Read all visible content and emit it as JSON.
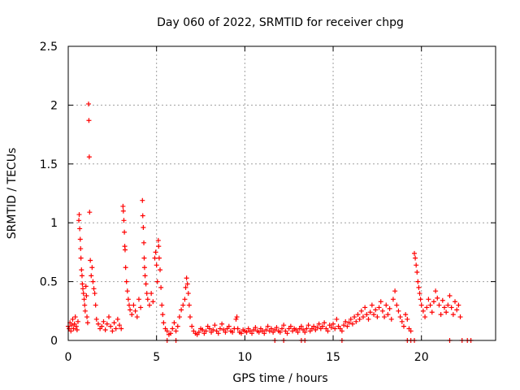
{
  "chart_data": {
    "type": "scatter",
    "title": "Day 060 of 2022, SRMTID for receiver chpg",
    "xlabel": "GPS time / hours",
    "ylabel": "SRMTID / TECUs",
    "xlim": [
      0,
      24.2
    ],
    "ylim": [
      0,
      2.5
    ],
    "xticks": [
      0,
      5,
      10,
      15,
      20
    ],
    "yticks": [
      0,
      0.5,
      1,
      1.5,
      2,
      2.5
    ],
    "xtick_labels": [
      "0",
      "5",
      "10",
      "15",
      "20"
    ],
    "ytick_labels": [
      "0",
      "0.5",
      "1",
      "1.5",
      "2",
      "2.5"
    ],
    "grid": true,
    "marker": "+",
    "color": "#ff0000",
    "series": [
      {
        "name": "SRMTID",
        "points": [
          [
            0.0,
            0.12
          ],
          [
            0.05,
            0.1
          ],
          [
            0.1,
            0.15
          ],
          [
            0.15,
            0.08
          ],
          [
            0.2,
            0.13
          ],
          [
            0.25,
            0.18
          ],
          [
            0.3,
            0.1
          ],
          [
            0.35,
            0.14
          ],
          [
            0.4,
            0.2
          ],
          [
            0.45,
            0.12
          ],
          [
            0.5,
            0.09
          ],
          [
            0.55,
            0.16
          ],
          [
            0.6,
            1.02
          ],
          [
            0.62,
            1.07
          ],
          [
            0.65,
            0.95
          ],
          [
            0.68,
            0.86
          ],
          [
            0.7,
            0.78
          ],
          [
            0.72,
            0.7
          ],
          [
            0.75,
            0.6
          ],
          [
            0.78,
            0.55
          ],
          [
            0.8,
            0.48
          ],
          [
            0.83,
            0.44
          ],
          [
            0.86,
            0.4
          ],
          [
            0.9,
            0.35
          ],
          [
            0.93,
            0.3
          ],
          [
            0.96,
            0.25
          ],
          [
            1.0,
            0.46
          ],
          [
            1.03,
            0.38
          ],
          [
            1.06,
            0.2
          ],
          [
            1.1,
            0.15
          ],
          [
            1.15,
            2.01
          ],
          [
            1.17,
            1.87
          ],
          [
            1.19,
            1.56
          ],
          [
            1.21,
            1.09
          ],
          [
            1.25,
            0.68
          ],
          [
            1.3,
            0.55
          ],
          [
            1.35,
            0.62
          ],
          [
            1.4,
            0.5
          ],
          [
            1.45,
            0.44
          ],
          [
            1.5,
            0.4
          ],
          [
            1.55,
            0.3
          ],
          [
            1.6,
            0.18
          ],
          [
            1.7,
            0.14
          ],
          [
            1.8,
            0.1
          ],
          [
            1.9,
            0.12
          ],
          [
            2.0,
            0.16
          ],
          [
            2.1,
            0.09
          ],
          [
            2.2,
            0.14
          ],
          [
            2.3,
            0.2
          ],
          [
            2.4,
            0.12
          ],
          [
            2.5,
            0.08
          ],
          [
            2.6,
            0.15
          ],
          [
            2.7,
            0.1
          ],
          [
            2.8,
            0.18
          ],
          [
            2.9,
            0.13
          ],
          [
            3.0,
            0.1
          ],
          [
            3.1,
            1.14
          ],
          [
            3.12,
            1.1
          ],
          [
            3.15,
            1.02
          ],
          [
            3.18,
            0.92
          ],
          [
            3.2,
            0.8
          ],
          [
            3.22,
            0.77
          ],
          [
            3.25,
            0.62
          ],
          [
            3.3,
            0.5
          ],
          [
            3.35,
            0.42
          ],
          [
            3.4,
            0.35
          ],
          [
            3.45,
            0.3
          ],
          [
            3.5,
            0.26
          ],
          [
            3.6,
            0.22
          ],
          [
            3.7,
            0.3
          ],
          [
            3.8,
            0.25
          ],
          [
            3.9,
            0.2
          ],
          [
            4.0,
            0.35
          ],
          [
            4.1,
            0.28
          ],
          [
            4.2,
            1.19
          ],
          [
            4.22,
            1.06
          ],
          [
            4.25,
            0.96
          ],
          [
            4.28,
            0.83
          ],
          [
            4.3,
            0.7
          ],
          [
            4.32,
            0.62
          ],
          [
            4.35,
            0.55
          ],
          [
            4.4,
            0.48
          ],
          [
            4.45,
            0.4
          ],
          [
            4.5,
            0.35
          ],
          [
            4.6,
            0.3
          ],
          [
            4.7,
            0.4
          ],
          [
            4.8,
            0.33
          ],
          [
            4.9,
            0.7
          ],
          [
            4.95,
            0.75
          ],
          [
            5.0,
            0.64
          ],
          [
            5.05,
            0.5
          ],
          [
            5.1,
            0.85
          ],
          [
            5.12,
            0.8
          ],
          [
            5.15,
            0.7
          ],
          [
            5.2,
            0.6
          ],
          [
            5.25,
            0.45
          ],
          [
            5.3,
            0.3
          ],
          [
            5.35,
            0.22
          ],
          [
            5.4,
            0.15
          ],
          [
            5.5,
            0.1
          ],
          [
            5.6,
            0.08
          ],
          [
            5.7,
            0.05
          ],
          [
            5.8,
            0.06
          ],
          [
            5.9,
            0.1
          ],
          [
            6.0,
            0.15
          ],
          [
            6.1,
            0.08
          ],
          [
            6.2,
            0.12
          ],
          [
            6.3,
            0.2
          ],
          [
            6.4,
            0.26
          ],
          [
            6.5,
            0.3
          ],
          [
            6.6,
            0.35
          ],
          [
            6.65,
            0.45
          ],
          [
            6.7,
            0.53
          ],
          [
            6.75,
            0.48
          ],
          [
            6.8,
            0.4
          ],
          [
            6.85,
            0.3
          ],
          [
            6.9,
            0.2
          ],
          [
            7.0,
            0.12
          ],
          [
            7.1,
            0.08
          ],
          [
            7.2,
            0.06
          ],
          [
            7.3,
            0.05
          ],
          [
            7.4,
            0.07
          ],
          [
            7.5,
            0.1
          ],
          [
            7.6,
            0.09
          ],
          [
            7.7,
            0.06
          ],
          [
            7.8,
            0.08
          ],
          [
            7.9,
            0.12
          ],
          [
            8.0,
            0.1
          ],
          [
            8.1,
            0.07
          ],
          [
            8.2,
            0.09
          ],
          [
            8.3,
            0.13
          ],
          [
            8.4,
            0.08
          ],
          [
            8.5,
            0.06
          ],
          [
            8.6,
            0.1
          ],
          [
            8.7,
            0.14
          ],
          [
            8.8,
            0.09
          ],
          [
            8.9,
            0.07
          ],
          [
            9.0,
            0.1
          ],
          [
            9.1,
            0.12
          ],
          [
            9.2,
            0.08
          ],
          [
            9.3,
            0.07
          ],
          [
            9.4,
            0.1
          ],
          [
            9.5,
            0.18
          ],
          [
            9.55,
            0.2
          ],
          [
            9.6,
            0.1
          ],
          [
            9.7,
            0.07
          ],
          [
            9.8,
            0.06
          ],
          [
            9.9,
            0.09
          ],
          [
            10.0,
            0.08
          ],
          [
            10.1,
            0.07
          ],
          [
            10.2,
            0.1
          ],
          [
            10.3,
            0.08
          ],
          [
            10.4,
            0.06
          ],
          [
            10.5,
            0.09
          ],
          [
            10.6,
            0.11
          ],
          [
            10.7,
            0.08
          ],
          [
            10.8,
            0.07
          ],
          [
            10.9,
            0.1
          ],
          [
            11.0,
            0.08
          ],
          [
            11.1,
            0.06
          ],
          [
            11.2,
            0.09
          ],
          [
            11.3,
            0.12
          ],
          [
            11.4,
            0.08
          ],
          [
            11.5,
            0.1
          ],
          [
            11.6,
            0.07
          ],
          [
            11.7,
            0.09
          ],
          [
            11.8,
            0.11
          ],
          [
            11.9,
            0.08
          ],
          [
            12.0,
            0.07
          ],
          [
            12.1,
            0.1
          ],
          [
            12.2,
            0.13
          ],
          [
            12.3,
            0.08
          ],
          [
            12.4,
            0.06
          ],
          [
            12.5,
            0.1
          ],
          [
            12.6,
            0.12
          ],
          [
            12.7,
            0.08
          ],
          [
            12.8,
            0.1
          ],
          [
            12.9,
            0.09
          ],
          [
            13.0,
            0.07
          ],
          [
            13.1,
            0.1
          ],
          [
            13.2,
            0.12
          ],
          [
            13.3,
            0.09
          ],
          [
            13.4,
            0.07
          ],
          [
            13.5,
            0.1
          ],
          [
            13.6,
            0.13
          ],
          [
            13.7,
            0.08
          ],
          [
            13.8,
            0.1
          ],
          [
            13.9,
            0.12
          ],
          [
            14.0,
            0.09
          ],
          [
            14.1,
            0.11
          ],
          [
            14.2,
            0.14
          ],
          [
            14.3,
            0.1
          ],
          [
            14.4,
            0.12
          ],
          [
            14.5,
            0.15
          ],
          [
            14.6,
            0.1
          ],
          [
            14.7,
            0.08
          ],
          [
            14.8,
            0.13
          ],
          [
            14.9,
            0.11
          ],
          [
            15.0,
            0.14
          ],
          [
            15.1,
            0.1
          ],
          [
            15.2,
            0.18
          ],
          [
            15.3,
            0.12
          ],
          [
            15.4,
            0.1
          ],
          [
            15.5,
            0.08
          ],
          [
            15.6,
            0.13
          ],
          [
            15.7,
            0.16
          ],
          [
            15.8,
            0.12
          ],
          [
            15.9,
            0.15
          ],
          [
            16.0,
            0.18
          ],
          [
            16.1,
            0.14
          ],
          [
            16.2,
            0.2
          ],
          [
            16.3,
            0.16
          ],
          [
            16.4,
            0.22
          ],
          [
            16.5,
            0.18
          ],
          [
            16.6,
            0.25
          ],
          [
            16.7,
            0.2
          ],
          [
            16.8,
            0.28
          ],
          [
            16.9,
            0.22
          ],
          [
            17.0,
            0.18
          ],
          [
            17.1,
            0.24
          ],
          [
            17.2,
            0.3
          ],
          [
            17.3,
            0.22
          ],
          [
            17.4,
            0.26
          ],
          [
            17.5,
            0.2
          ],
          [
            17.6,
            0.28
          ],
          [
            17.7,
            0.33
          ],
          [
            17.8,
            0.25
          ],
          [
            17.9,
            0.2
          ],
          [
            18.0,
            0.3
          ],
          [
            18.1,
            0.22
          ],
          [
            18.2,
            0.27
          ],
          [
            18.3,
            0.18
          ],
          [
            18.4,
            0.35
          ],
          [
            18.5,
            0.42
          ],
          [
            18.6,
            0.3
          ],
          [
            18.7,
            0.25
          ],
          [
            18.8,
            0.2
          ],
          [
            18.9,
            0.16
          ],
          [
            19.0,
            0.12
          ],
          [
            19.1,
            0.22
          ],
          [
            19.2,
            0.18
          ],
          [
            19.3,
            0.1
          ],
          [
            19.4,
            0.08
          ],
          [
            19.6,
            0.74
          ],
          [
            19.65,
            0.7
          ],
          [
            19.7,
            0.64
          ],
          [
            19.75,
            0.58
          ],
          [
            19.8,
            0.5
          ],
          [
            19.85,
            0.45
          ],
          [
            19.9,
            0.4
          ],
          [
            19.95,
            0.35
          ],
          [
            20.0,
            0.3
          ],
          [
            20.1,
            0.25
          ],
          [
            20.2,
            0.2
          ],
          [
            20.3,
            0.28
          ],
          [
            20.4,
            0.35
          ],
          [
            20.5,
            0.3
          ],
          [
            20.6,
            0.24
          ],
          [
            20.7,
            0.33
          ],
          [
            20.8,
            0.42
          ],
          [
            20.9,
            0.36
          ],
          [
            21.0,
            0.3
          ],
          [
            21.1,
            0.22
          ],
          [
            21.2,
            0.34
          ],
          [
            21.3,
            0.28
          ],
          [
            21.4,
            0.24
          ],
          [
            21.5,
            0.3
          ],
          [
            21.6,
            0.38
          ],
          [
            21.7,
            0.28
          ],
          [
            21.8,
            0.22
          ],
          [
            21.9,
            0.33
          ],
          [
            22.0,
            0.26
          ],
          [
            22.1,
            0.3
          ],
          [
            22.2,
            0.2
          ],
          [
            5.6,
            0.0
          ],
          [
            6.1,
            0.0
          ],
          [
            11.7,
            0.0
          ],
          [
            12.2,
            0.0
          ],
          [
            13.2,
            0.0
          ],
          [
            13.4,
            0.0
          ],
          [
            15.5,
            0.0
          ],
          [
            19.2,
            0.0
          ],
          [
            19.4,
            0.0
          ],
          [
            19.6,
            0.0
          ],
          [
            21.6,
            0.0
          ],
          [
            22.3,
            0.0
          ],
          [
            22.6,
            0.0
          ],
          [
            22.8,
            0.0
          ]
        ]
      }
    ]
  }
}
